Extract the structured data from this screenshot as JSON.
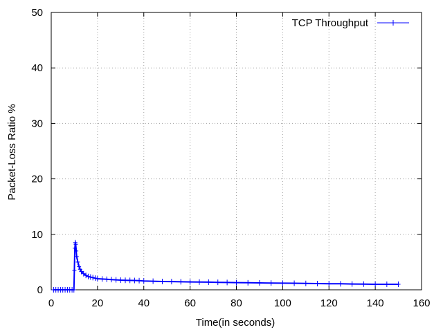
{
  "chart_data": {
    "type": "line",
    "title": "",
    "xlabel": "Time(in seconds)",
    "ylabel": "Packet-Loss Ratio %",
    "xlim": [
      0,
      160
    ],
    "ylim": [
      0,
      50
    ],
    "xticks": [
      "0",
      "20",
      "40",
      "60",
      "80",
      "100",
      "120",
      "140",
      "160"
    ],
    "yticks": [
      "0",
      "10",
      "20",
      "30",
      "40",
      "50"
    ],
    "grid": true,
    "legend_position": "top-right",
    "series": [
      {
        "name": "TCP Throughput",
        "color": "#0000ff",
        "marker": "plus",
        "x": [
          1,
          2,
          3,
          4,
          5,
          6,
          7,
          8,
          9,
          9.8,
          10,
          10.2,
          10.4,
          10.6,
          10.8,
          11,
          11.5,
          12,
          12.5,
          13,
          14,
          15,
          16,
          17,
          18,
          19,
          20,
          22,
          24,
          26,
          28,
          30,
          32,
          34,
          36,
          38,
          40,
          44,
          48,
          52,
          56,
          60,
          64,
          68,
          72,
          76,
          80,
          85,
          90,
          95,
          100,
          105,
          110,
          115,
          120,
          125,
          130,
          135,
          140,
          145,
          150
        ],
        "y": [
          0,
          0,
          0,
          0,
          0,
          0,
          0,
          0,
          0,
          0,
          3.5,
          7.5,
          8.5,
          8.2,
          7.0,
          6.0,
          5.0,
          4.2,
          3.7,
          3.3,
          2.9,
          2.6,
          2.4,
          2.3,
          2.2,
          2.1,
          2.0,
          1.95,
          1.9,
          1.85,
          1.8,
          1.75,
          1.72,
          1.7,
          1.68,
          1.65,
          1.6,
          1.55,
          1.5,
          1.48,
          1.45,
          1.42,
          1.4,
          1.38,
          1.35,
          1.32,
          1.3,
          1.27,
          1.25,
          1.22,
          1.2,
          1.18,
          1.15,
          1.12,
          1.1,
          1.08,
          1.05,
          1.03,
          1.0,
          1.0,
          1.0
        ]
      }
    ]
  }
}
